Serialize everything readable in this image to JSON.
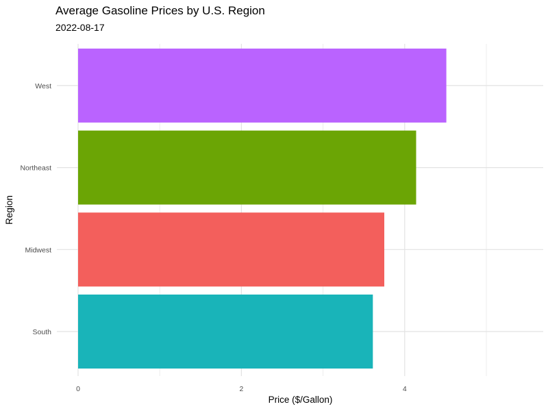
{
  "chart_data": {
    "type": "bar",
    "orientation": "horizontal",
    "title": "Average Gasoline Prices by U.S. Region",
    "subtitle": "2022-08-17",
    "xlabel": "Price ($/Gallon)",
    "ylabel": "Region",
    "categories": [
      "South",
      "Midwest",
      "Northeast",
      "West"
    ],
    "values": [
      3.61,
      3.75,
      4.14,
      4.51
    ],
    "colors": [
      "#19B4B9",
      "#F35F5C",
      "#6BA505",
      "#BA63FF"
    ],
    "xlim": [
      0,
      5.7
    ],
    "xticks": [
      0,
      2,
      4
    ],
    "grid": true,
    "legend": "none"
  }
}
